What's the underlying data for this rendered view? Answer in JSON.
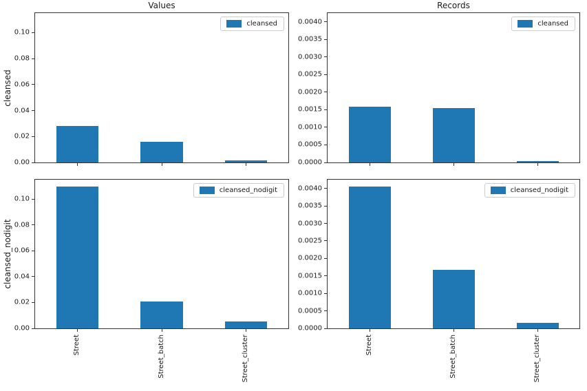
{
  "figure": {
    "bar_color": "#1f77b4",
    "spine_color": "#333333",
    "text_color": "#191919",
    "legend_border_color": "#cccccc",
    "background": "#ffffff"
  },
  "chart_data": [
    {
      "type": "bar",
      "title": "Values",
      "ylabel": "cleansed",
      "legend_label": "cleansed",
      "legend_position": "upper right",
      "grid": false,
      "categories": [
        "Street",
        "Street_batch",
        "Street_cluster"
      ],
      "values": [
        0.028,
        0.016,
        0.0017
      ],
      "yticks": [
        0.0,
        0.02,
        0.04,
        0.06,
        0.08,
        0.1
      ],
      "ytick_labels": [
        "0.00",
        "0.02",
        "0.04",
        "0.06",
        "0.08",
        "0.10"
      ],
      "ylim": [
        0,
        0.115
      ],
      "show_xlabels": false
    },
    {
      "type": "bar",
      "title": "Records",
      "legend_label": "cleansed",
      "legend_position": "upper right",
      "grid": false,
      "categories": [
        "Street",
        "Street_batch",
        "Street_cluster"
      ],
      "values": [
        0.00158,
        0.00155,
        4e-05
      ],
      "yticks": [
        0.0,
        0.0005,
        0.001,
        0.0015,
        0.002,
        0.0025,
        0.003,
        0.0035,
        0.004
      ],
      "ytick_labels": [
        "0.0000",
        "0.0005",
        "0.0010",
        "0.0015",
        "0.0020",
        "0.0025",
        "0.0030",
        "0.0035",
        "0.0040"
      ],
      "ylim": [
        0,
        0.00425
      ],
      "show_xlabels": false
    },
    {
      "type": "bar",
      "ylabel": "cleansed_nodigit",
      "legend_label": "cleansed_nodigit",
      "legend_position": "upper right",
      "grid": false,
      "categories": [
        "Street",
        "Street_batch",
        "Street_cluster"
      ],
      "values": [
        0.1095,
        0.021,
        0.0052
      ],
      "yticks": [
        0.0,
        0.02,
        0.04,
        0.06,
        0.08,
        0.1
      ],
      "ytick_labels": [
        "0.00",
        "0.02",
        "0.04",
        "0.06",
        "0.08",
        "0.10"
      ],
      "ylim": [
        0,
        0.115
      ],
      "show_xlabels": true
    },
    {
      "type": "bar",
      "legend_label": "cleansed_nodigit",
      "legend_position": "upper right",
      "grid": false,
      "categories": [
        "Street",
        "Street_batch",
        "Street_cluster"
      ],
      "values": [
        0.00406,
        0.00168,
        0.00015
      ],
      "yticks": [
        0.0,
        0.0005,
        0.001,
        0.0015,
        0.002,
        0.0025,
        0.003,
        0.0035,
        0.004
      ],
      "ytick_labels": [
        "0.0000",
        "0.0005",
        "0.0010",
        "0.0015",
        "0.0020",
        "0.0025",
        "0.0030",
        "0.0035",
        "0.0040"
      ],
      "ylim": [
        0,
        0.00425
      ],
      "show_xlabels": true
    }
  ]
}
